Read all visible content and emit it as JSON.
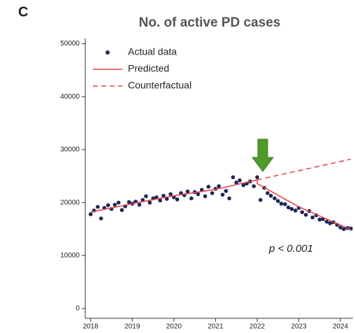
{
  "chart_data": {
    "type": "scatter",
    "panel_label": "C",
    "title": "No. of active PD cases",
    "annotation": "p < 0.001",
    "xlim": [
      2017.87,
      2024.3
    ],
    "ylim": [
      -1850,
      51000
    ],
    "xticks": [
      2018,
      2019,
      2020,
      2021,
      2022,
      2023,
      2024
    ],
    "yticks": [
      0,
      10000,
      20000,
      30000,
      40000,
      50000
    ],
    "grid": false,
    "legend": "upper left",
    "series": [
      {
        "name": "Actual data",
        "color": "#1c2657",
        "style": "markers",
        "x": [
          2018.0,
          2018.08,
          2018.17,
          2018.25,
          2018.33,
          2018.42,
          2018.5,
          2018.58,
          2018.67,
          2018.75,
          2018.83,
          2018.92,
          2019.0,
          2019.08,
          2019.17,
          2019.25,
          2019.33,
          2019.42,
          2019.5,
          2019.58,
          2019.67,
          2019.75,
          2019.83,
          2019.92,
          2020.0,
          2020.08,
          2020.17,
          2020.25,
          2020.33,
          2020.42,
          2020.5,
          2020.58,
          2020.67,
          2020.75,
          2020.83,
          2020.92,
          2021.0,
          2021.08,
          2021.17,
          2021.25,
          2021.33,
          2021.42,
          2021.5,
          2021.58,
          2021.67,
          2021.75,
          2021.83,
          2021.92,
          2022.0,
          2022.08,
          2022.17,
          2022.25,
          2022.33,
          2022.42,
          2022.5,
          2022.58,
          2022.67,
          2022.75,
          2022.83,
          2022.92,
          2023.0,
          2023.08,
          2023.17,
          2023.25,
          2023.33,
          2023.42,
          2023.5,
          2023.58,
          2023.67,
          2023.75,
          2023.83,
          2023.92,
          2024.0,
          2024.08,
          2024.17,
          2024.25
        ],
        "values": [
          17800,
          18500,
          19200,
          17000,
          19000,
          19500,
          18800,
          19600,
          20000,
          18600,
          19300,
          20100,
          19800,
          20200,
          19600,
          20500,
          21200,
          20000,
          20800,
          21000,
          20400,
          21300,
          20700,
          21600,
          21000,
          20600,
          21800,
          21400,
          22100,
          20800,
          22000,
          21600,
          22400,
          21200,
          23000,
          21800,
          22600,
          23100,
          21500,
          22200,
          20800,
          24800,
          23800,
          24200,
          23300,
          23600,
          24000,
          23100,
          24800,
          20500,
          22800,
          21800,
          21300,
          20800,
          20300,
          19800,
          19700,
          19100,
          18800,
          18500,
          19000,
          18200,
          17700,
          18400,
          17200,
          17600,
          16800,
          16900,
          16400,
          16100,
          16300,
          15800,
          15300,
          15000,
          15200,
          15100
        ]
      },
      {
        "name": "Predicted",
        "color": "#e0474c",
        "style": "solid",
        "x": [
          2018,
          2019,
          2020,
          2021,
          2022,
          2022,
          2023,
          2024.25
        ],
        "values": [
          18200,
          19800,
          21300,
          22500,
          24300,
          23600,
          19200,
          14900
        ]
      },
      {
        "name": "Counterfactual",
        "color": "#e0474c",
        "style": "dashed",
        "x": [
          2022,
          2024.25
        ],
        "values": [
          24300,
          28200
        ]
      }
    ]
  }
}
